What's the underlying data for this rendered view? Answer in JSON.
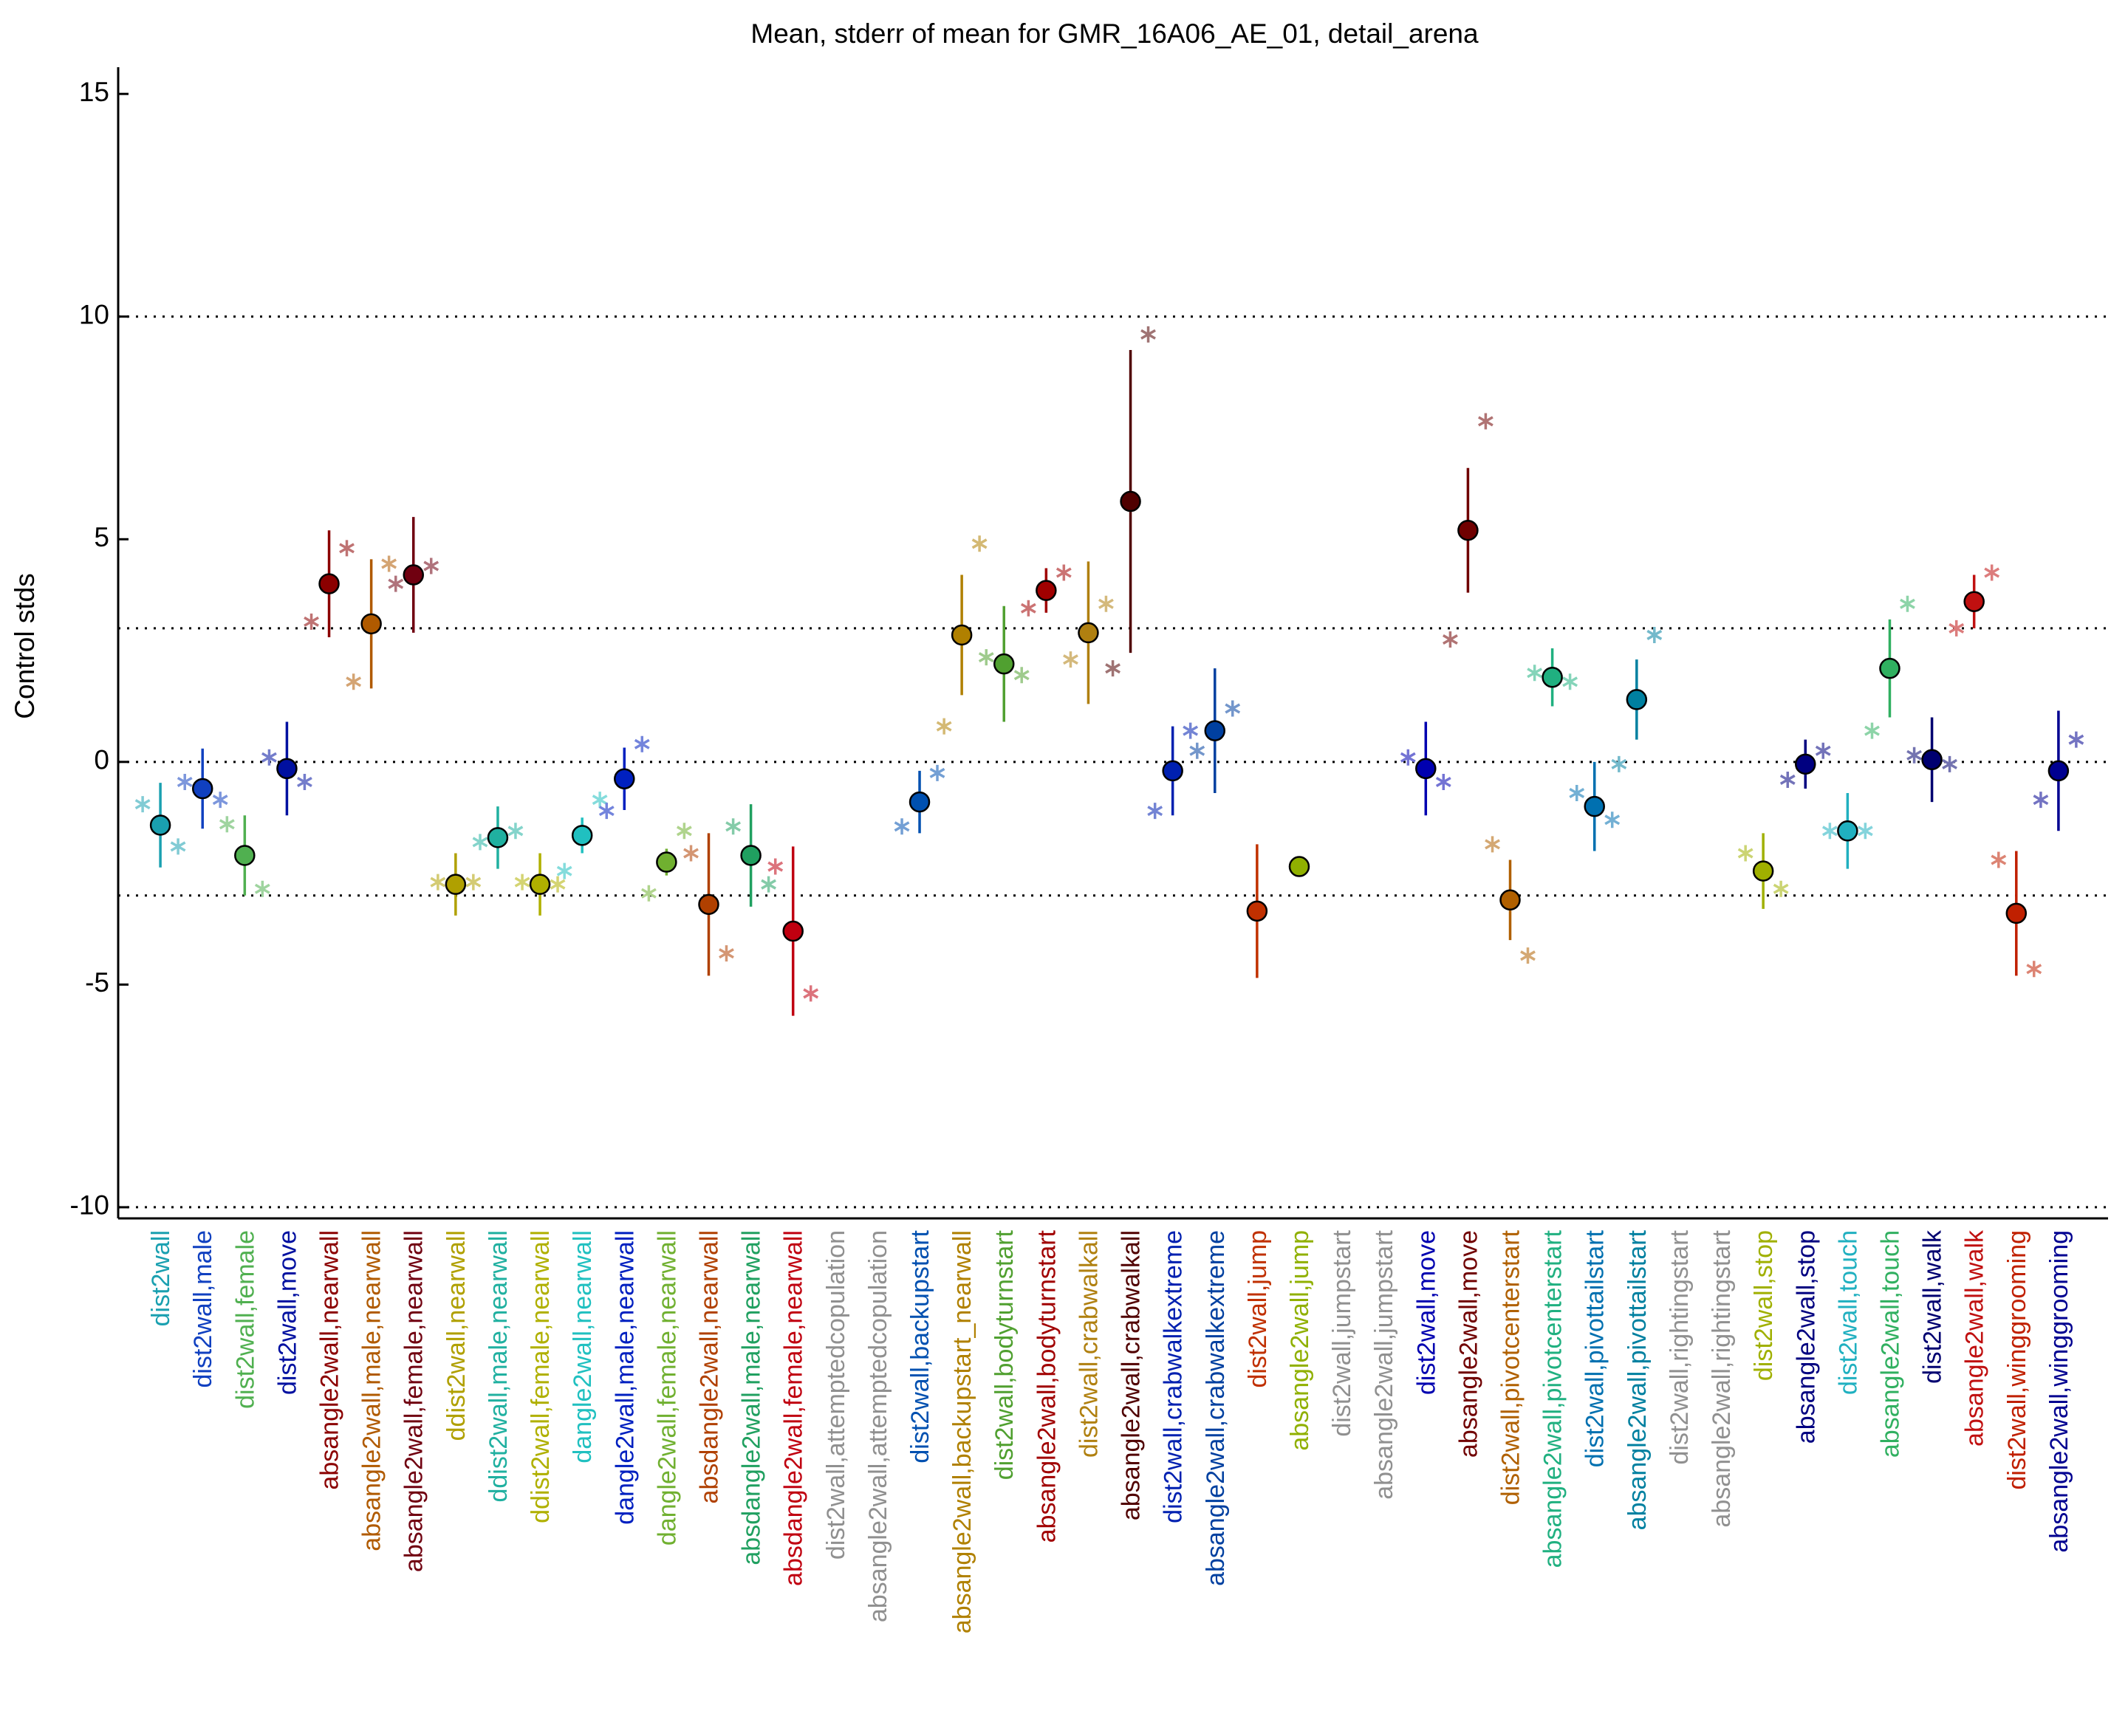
{
  "chart_data": {
    "type": "errorbar",
    "title": "Mean, stderr of mean for GMR_16A06_AE_01, detail_arena",
    "y_label": "Control stds",
    "ylim": [
      -10.25,
      15.6
    ],
    "yticks": [
      -10,
      -5,
      0,
      5,
      10,
      15
    ],
    "reference_lines": [
      -10,
      -3,
      0,
      3,
      10
    ],
    "categories": [
      "dist2wall",
      "dist2wall,male",
      "dist2wall,female",
      "dist2wall,move",
      "absangle2wall,nearwall",
      "absangle2wall,male,nearwall",
      "absangle2wall,female,nearwall",
      "ddist2wall,nearwall",
      "ddist2wall,male,nearwall",
      "ddist2wall,female,nearwall",
      "dangle2wall,nearwall",
      "dangle2wall,male,nearwall",
      "dangle2wall,female,nearwall",
      "absdangle2wall,nearwall",
      "absdangle2wall,male,nearwall",
      "absdangle2wall,female,nearwall",
      "dist2wall,attemptedcopulation",
      "absangle2wall,attemptedcopulation",
      "dist2wall,backupstart",
      "absangle2wall,backupstart_nearwall",
      "dist2wall,bodyturnstart",
      "absangle2wall,bodyturnstart",
      "dist2wall,crabwalkall",
      "absangle2wall,crabwalkall",
      "dist2wall,crabwalkextreme",
      "absangle2wall,crabwalkextreme",
      "dist2wall,jump",
      "absangle2wall,jump",
      "dist2wall,jumpstart",
      "absangle2wall,jumpstart",
      "dist2wall,move",
      "absangle2wall,move",
      "dist2wall,pivotcenterstart",
      "absangle2wall,pivotcenterstart",
      "dist2wall,pivottailstart",
      "absangle2wall,pivottailstart",
      "dist2wall,rightingstart",
      "absangle2wall,rightingstart",
      "dist2wall,stop",
      "absangle2wall,stop",
      "dist2wall,touch",
      "absangle2wall,touch",
      "dist2wall,walk",
      "absangle2wall,walk",
      "dist2wall,winggrooming",
      "absangle2wall,winggrooming"
    ],
    "colors": [
      "#1aa0b0",
      "#1040c0",
      "#50b050",
      "#0010a0",
      "#8b0000",
      "#b05a00",
      "#700010",
      "#b0a000",
      "#20b0a0",
      "#b0b000",
      "#20c0c0",
      "#0020c0",
      "#70b030",
      "#b04000",
      "#20a060",
      "#c00010",
      "#909090",
      "#909090",
      "#0050b0",
      "#b08000",
      "#50a030",
      "#a00000",
      "#b08010",
      "#500000",
      "#0020b0",
      "#0040a0",
      "#c03000",
      "#90b000",
      "#909090",
      "#909090",
      "#0000b0",
      "#700000",
      "#b06000",
      "#20b080",
      "#0070b0",
      "#0080a0",
      "#909090",
      "#909090",
      "#a0b000",
      "#000080",
      "#20b0c0",
      "#30b060",
      "#000070",
      "#c01010",
      "#c02000",
      "#000090"
    ],
    "values": [
      -1.42,
      -0.6,
      -2.1,
      -0.15,
      4.0,
      3.1,
      4.2,
      -2.75,
      -1.7,
      -2.75,
      -1.65,
      -0.38,
      -2.25,
      -3.2,
      -2.1,
      -3.8,
      null,
      null,
      -0.9,
      2.85,
      2.2,
      3.85,
      2.9,
      5.85,
      -0.2,
      0.7,
      -3.35,
      -2.35,
      null,
      null,
      -0.15,
      5.2,
      -3.1,
      1.9,
      -1.0,
      1.4,
      null,
      null,
      -2.45,
      -0.05,
      -1.55,
      2.1,
      0.05,
      3.6,
      -3.4,
      -0.2
    ],
    "errors": [
      0.95,
      0.9,
      0.9,
      1.05,
      1.2,
      1.45,
      1.3,
      0.7,
      0.7,
      0.7,
      0.4,
      0.7,
      0.3,
      1.6,
      1.15,
      1.9,
      null,
      null,
      0.7,
      1.35,
      1.3,
      0.5,
      1.6,
      3.4,
      1.0,
      1.4,
      1.5,
      0,
      null,
      null,
      1.05,
      1.4,
      0.9,
      0.65,
      1.0,
      0.9,
      null,
      null,
      0.85,
      0.55,
      0.85,
      1.1,
      0.95,
      0.6,
      1.4,
      1.35
    ],
    "male_values": [
      -0.95,
      -0.45,
      -1.4,
      0.1,
      3.15,
      1.8,
      4.0,
      -2.7,
      -1.8,
      -2.7,
      -2.45,
      -1.1,
      -2.95,
      -2.05,
      -1.45,
      -2.35,
      null,
      null,
      -1.45,
      0.8,
      2.35,
      3.45,
      2.3,
      2.1,
      -1.1,
      0.25,
      null,
      null,
      null,
      null,
      0.1,
      2.75,
      -1.85,
      2.0,
      -0.7,
      -0.05,
      null,
      null,
      -2.05,
      -0.4,
      -1.55,
      0.7,
      0.15,
      3.0,
      -2.2,
      -0.85
    ],
    "female_values": [
      -1.9,
      -0.85,
      -2.85,
      -0.45,
      4.8,
      4.45,
      4.4,
      -2.7,
      -1.55,
      -2.75,
      -0.85,
      0.4,
      -1.55,
      -4.3,
      -2.75,
      -5.2,
      null,
      null,
      -0.25,
      4.9,
      1.95,
      4.25,
      3.55,
      9.6,
      0.7,
      1.2,
      null,
      null,
      null,
      null,
      -0.45,
      7.65,
      -4.35,
      1.8,
      -1.3,
      2.85,
      null,
      null,
      -2.85,
      0.25,
      -1.55,
      3.55,
      -0.05,
      4.25,
      -4.65,
      0.5
    ]
  }
}
